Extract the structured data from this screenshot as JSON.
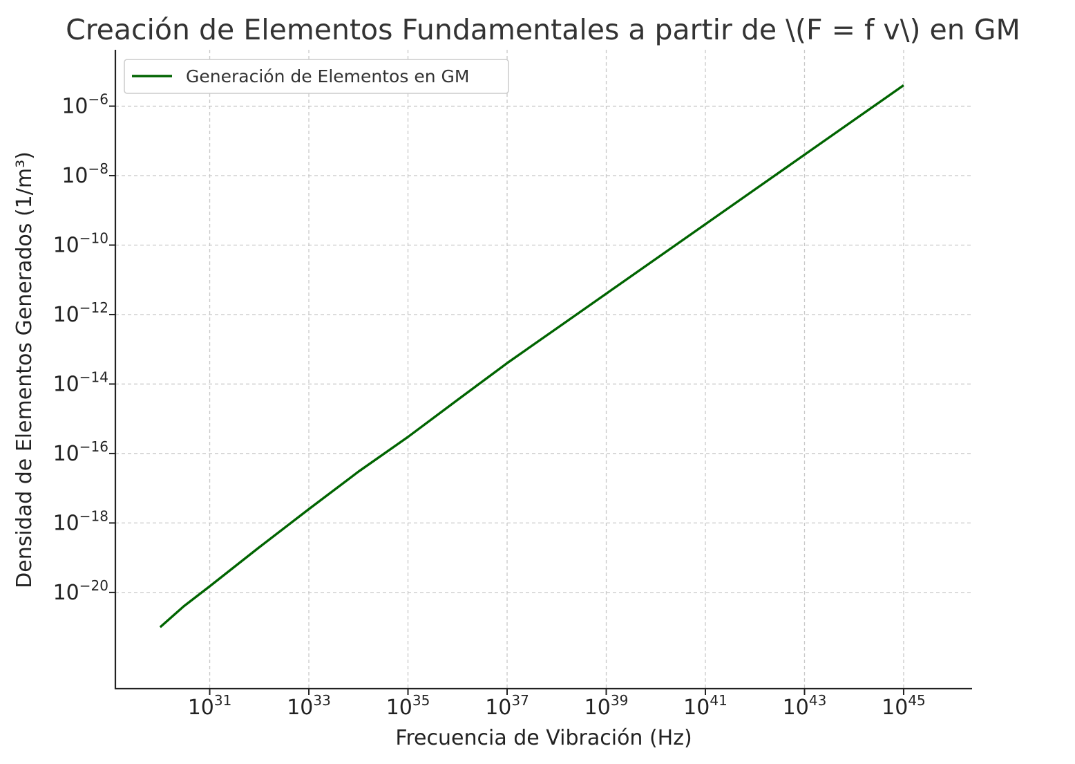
{
  "chart_data": {
    "type": "line",
    "title": "Creación de Elementos Fundamentales a partir de \\(F = f v\\) en GM",
    "xlabel": "Frecuencia de Vibración (Hz)",
    "ylabel": "Densidad de Elementos Generados (1/m³)",
    "x_scale": "log",
    "y_scale": "log",
    "xlim": [
      1.25e+29,
      2.4e+46
    ],
    "ylim": [
      1.7e-23,
      4.2e-05
    ],
    "grid": true,
    "legend_position": "top-left",
    "x_ticks": [
      {
        "base": "10",
        "exp": "31",
        "value": 1e+31
      },
      {
        "base": "10",
        "exp": "33",
        "value": 1e+33
      },
      {
        "base": "10",
        "exp": "35",
        "value": 1e+35
      },
      {
        "base": "10",
        "exp": "37",
        "value": 1e+37
      },
      {
        "base": "10",
        "exp": "39",
        "value": 1e+39
      },
      {
        "base": "10",
        "exp": "41",
        "value": 1e+41
      },
      {
        "base": "10",
        "exp": "43",
        "value": 1e+43
      },
      {
        "base": "10",
        "exp": "45",
        "value": 1e+45
      }
    ],
    "y_ticks": [
      {
        "base": "10",
        "exp": "−6",
        "value": 1e-06
      },
      {
        "base": "10",
        "exp": "−8",
        "value": 1e-08
      },
      {
        "base": "10",
        "exp": "−10",
        "value": 1e-10
      },
      {
        "base": "10",
        "exp": "−12",
        "value": 1e-12
      },
      {
        "base": "10",
        "exp": "−14",
        "value": 1e-14
      },
      {
        "base": "10",
        "exp": "−16",
        "value": 1e-16
      },
      {
        "base": "10",
        "exp": "−18",
        "value": 1e-18
      },
      {
        "base": "10",
        "exp": "−20",
        "value": 1e-20
      }
    ],
    "series": [
      {
        "name": "Generación de Elementos en GM",
        "color": "#006400",
        "points": [
          {
            "x": 1e+30,
            "y": 1e-21
          },
          {
            "x": 3e+30,
            "y": 4e-21
          },
          {
            "x": 1e+31,
            "y": 1.5e-20
          },
          {
            "x": 1e+32,
            "y": 2e-19
          },
          {
            "x": 1e+33,
            "y": 2.5e-18
          },
          {
            "x": 1e+34,
            "y": 3e-17
          },
          {
            "x": 1e+35,
            "y": 3e-16
          },
          {
            "x": 1e+36,
            "y": 3.5e-15
          },
          {
            "x": 1e+37,
            "y": 4e-14
          },
          {
            "x": 1e+38,
            "y": 4e-13
          },
          {
            "x": 1e+39,
            "y": 4e-12
          },
          {
            "x": 1e+40,
            "y": 4e-11
          },
          {
            "x": 1e+41,
            "y": 4e-10
          },
          {
            "x": 1e+42,
            "y": 4e-09
          },
          {
            "x": 1e+43,
            "y": 4e-08
          },
          {
            "x": 1e+44,
            "y": 4e-07
          },
          {
            "x": 1e+45,
            "y": 4e-06
          }
        ]
      }
    ]
  }
}
